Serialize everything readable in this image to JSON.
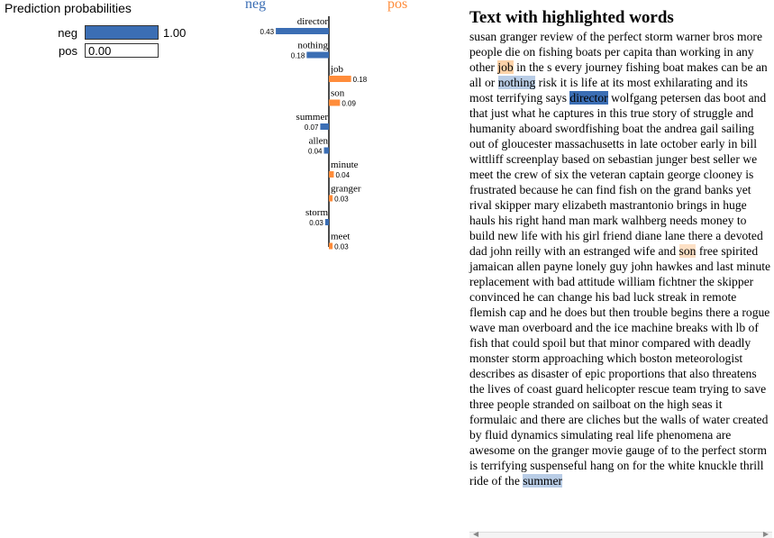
{
  "prediction": {
    "title": "Prediction probabilities",
    "rows": [
      {
        "label": "neg",
        "value": 1.0,
        "value_text": "1.00",
        "color": "#3b6eb4"
      },
      {
        "label": "pos",
        "value": 0.0,
        "value_text": "0.00",
        "color": "#ff8c3a"
      }
    ]
  },
  "chart_data": {
    "type": "bar",
    "class_labels": {
      "negative": "neg",
      "positive": "pos"
    },
    "colors": {
      "negative": "#3b6eb4",
      "positive": "#ff8c3a"
    },
    "features": [
      {
        "word": "director",
        "weight": -0.43,
        "label": "0.43"
      },
      {
        "word": "nothing",
        "weight": -0.18,
        "label": "0.18"
      },
      {
        "word": "job",
        "weight": 0.18,
        "label": "0.18"
      },
      {
        "word": "son",
        "weight": 0.09,
        "label": "0.09"
      },
      {
        "word": "summer",
        "weight": -0.07,
        "label": "0.07"
      },
      {
        "word": "allen",
        "weight": -0.04,
        "label": "0.04"
      },
      {
        "word": "minute",
        "weight": 0.04,
        "label": "0.04"
      },
      {
        "word": "granger",
        "weight": 0.03,
        "label": "0.03"
      },
      {
        "word": "storm",
        "weight": -0.03,
        "label": "0.03"
      },
      {
        "word": "meet",
        "weight": 0.03,
        "label": "0.03"
      }
    ]
  },
  "text_panel": {
    "title": "Text with highlighted words",
    "segments": [
      {
        "t": "susan granger review of the perfect storm warner bros more people die on fishing boats per capita than working in any other "
      },
      {
        "t": "job",
        "hl": "hl-pos-mid"
      },
      {
        "t": " in the s every journey fishing boat makes can be an all or "
      },
      {
        "t": "nothing",
        "hl": "hl-neg-light"
      },
      {
        "t": " risk it is life at its most exhilarating and its most terrifying says "
      },
      {
        "t": "director",
        "hl": "hl-neg-strong"
      },
      {
        "t": " wolfgang petersen das boot and that just what he captures in this true story of struggle and humanity aboard swordfishing boat the andrea gail sailing out of gloucester massachusetts in late october early in bill wittliff screenplay based on sebastian junger best seller we meet the crew of six the veteran captain george clooney is frustrated because he can find fish on the grand banks yet rival skipper mary elizabeth mastrantonio brings in huge hauls his right hand man mark walhberg needs money to build new life with his girl friend diane lane there a devoted dad john reilly with an estranged wife and "
      },
      {
        "t": "son",
        "hl": "hl-pos"
      },
      {
        "t": " free spirited jamaican allen payne lonely guy john hawkes and last minute replacement with bad attitude william fichtner the skipper convinced he can change his bad luck streak in remote flemish cap and he does but then trouble begins there a rogue wave man overboard and the ice machine breaks with lb of fish that could spoil but that minor compared with deadly monster storm approaching which boston meteorologist describes as disaster of epic proportions that also threatens the lives of coast guard helicopter rescue team trying to save three people stranded on sailboat on the high seas it formulaic and there are cliches but the walls of water created by fluid dynamics simulating real life phenomena are awesome on the granger movie gauge of to the perfect storm is terrifying suspenseful hang on for the white knuckle thrill ride of the "
      },
      {
        "t": "summer",
        "hl": "hl-neg-light"
      }
    ]
  },
  "scrollbar": {
    "left_arrow": "◀",
    "right_arrow": "▶"
  }
}
